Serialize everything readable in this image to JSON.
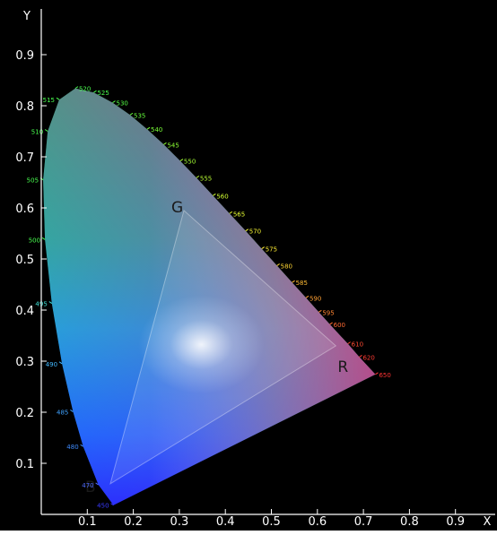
{
  "chart_data": {
    "type": "scatter",
    "title": "",
    "xlabel": "X",
    "ylabel": "Y",
    "xlim": [
      0,
      0.92
    ],
    "ylim": [
      0,
      0.91
    ],
    "grid": false,
    "background": "#000000",
    "axis_color": "#ffffff",
    "x_ticks": [
      {
        "value": 0.1,
        "label": "0.1"
      },
      {
        "value": 0.2,
        "label": "0.2"
      },
      {
        "value": 0.3,
        "label": "0.3"
      },
      {
        "value": 0.4,
        "label": "0.4"
      },
      {
        "value": 0.5,
        "label": "0.5"
      },
      {
        "value": 0.6,
        "label": "0.6"
      },
      {
        "value": 0.7,
        "label": "0.7"
      },
      {
        "value": 0.8,
        "label": "0.8"
      },
      {
        "value": 0.9,
        "label": "0.9"
      }
    ],
    "y_ticks": [
      {
        "value": 0.1,
        "label": "0.1"
      },
      {
        "value": 0.2,
        "label": "0.2"
      },
      {
        "value": 0.3,
        "label": "0.3"
      },
      {
        "value": 0.4,
        "label": "0.4"
      },
      {
        "value": 0.5,
        "label": "0.5"
      },
      {
        "value": 0.6,
        "label": "0.6"
      },
      {
        "value": 0.7,
        "label": "0.7"
      },
      {
        "value": 0.8,
        "label": "0.8"
      },
      {
        "value": 0.9,
        "label": "0.9"
      }
    ],
    "spectral_locus": [
      {
        "nm": "450",
        "x": 0.157,
        "y": 0.018,
        "color": "#3a3aff"
      },
      {
        "nm": "470",
        "x": 0.124,
        "y": 0.058,
        "color": "#4f6bff"
      },
      {
        "nm": "480",
        "x": 0.091,
        "y": 0.133,
        "color": "#3f8cff"
      },
      {
        "nm": "485",
        "x": 0.069,
        "y": 0.201,
        "color": "#3fa2ff"
      },
      {
        "nm": "490",
        "x": 0.045,
        "y": 0.295,
        "color": "#42b8ff"
      },
      {
        "nm": "495",
        "x": 0.023,
        "y": 0.413,
        "color": "#41e0d6"
      },
      {
        "nm": "500",
        "x": 0.008,
        "y": 0.538,
        "color": "#49ff4f"
      },
      {
        "nm": "505",
        "x": 0.004,
        "y": 0.655,
        "color": "#49ff4f"
      },
      {
        "nm": "510",
        "x": 0.014,
        "y": 0.75,
        "color": "#49ff4f"
      },
      {
        "nm": "515",
        "x": 0.039,
        "y": 0.812,
        "color": "#49ff4f"
      },
      {
        "nm": "520",
        "x": 0.074,
        "y": 0.834,
        "color": "#49ff4f"
      },
      {
        "nm": "525",
        "x": 0.114,
        "y": 0.826,
        "color": "#49ff4f"
      },
      {
        "nm": "530",
        "x": 0.155,
        "y": 0.806,
        "color": "#55ff45"
      },
      {
        "nm": "535",
        "x": 0.193,
        "y": 0.782,
        "color": "#66ff3c"
      },
      {
        "nm": "540",
        "x": 0.23,
        "y": 0.754,
        "color": "#7aff38"
      },
      {
        "nm": "545",
        "x": 0.266,
        "y": 0.724,
        "color": "#8cff33"
      },
      {
        "nm": "550",
        "x": 0.302,
        "y": 0.692,
        "color": "#a4ff33"
      },
      {
        "nm": "555",
        "x": 0.337,
        "y": 0.659,
        "color": "#bbff33"
      },
      {
        "nm": "560",
        "x": 0.373,
        "y": 0.624,
        "color": "#d2ff33"
      },
      {
        "nm": "565",
        "x": 0.409,
        "y": 0.589,
        "color": "#e8ff33"
      },
      {
        "nm": "570",
        "x": 0.444,
        "y": 0.555,
        "color": "#f5f533"
      },
      {
        "nm": "575",
        "x": 0.479,
        "y": 0.52,
        "color": "#ffee33"
      },
      {
        "nm": "580",
        "x": 0.512,
        "y": 0.487,
        "color": "#ffd633"
      },
      {
        "nm": "585",
        "x": 0.545,
        "y": 0.454,
        "color": "#ffbb33"
      },
      {
        "nm": "590",
        "x": 0.575,
        "y": 0.424,
        "color": "#ffa033"
      },
      {
        "nm": "595",
        "x": 0.603,
        "y": 0.396,
        "color": "#ff8633"
      },
      {
        "nm": "600",
        "x": 0.627,
        "y": 0.372,
        "color": "#ff6a33"
      },
      {
        "nm": "610",
        "x": 0.666,
        "y": 0.334,
        "color": "#ff4a33"
      },
      {
        "nm": "620",
        "x": 0.691,
        "y": 0.308,
        "color": "#ff3a33"
      },
      {
        "nm": "650",
        "x": 0.726,
        "y": 0.274,
        "color": "#ff3333"
      }
    ],
    "gamut_triangle": [
      {
        "name": "G",
        "x": 0.31,
        "y": 0.595
      },
      {
        "name": "R",
        "x": 0.64,
        "y": 0.33
      },
      {
        "name": "B",
        "x": 0.15,
        "y": 0.06
      }
    ],
    "white_point": {
      "x": 0.3127,
      "y": 0.329
    }
  }
}
